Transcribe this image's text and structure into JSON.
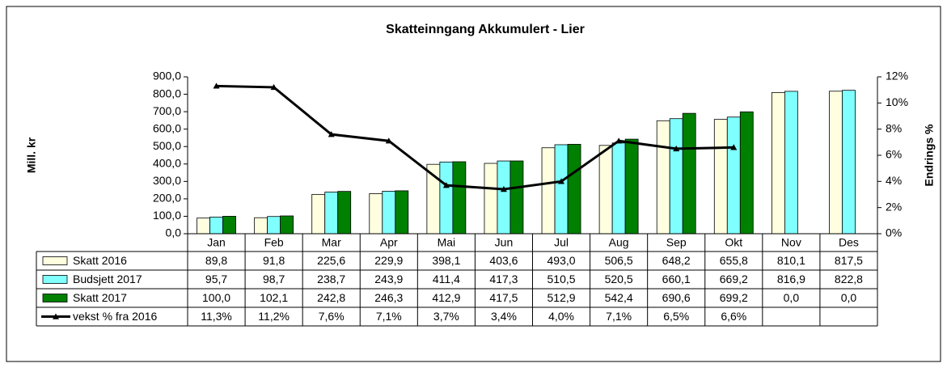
{
  "chart_data": {
    "type": "bar",
    "title": "Skatteinngang Akkumulert  - Lier",
    "ylabel": "Mill. kr",
    "y2label": "Endrings %",
    "categories": [
      "Jan",
      "Feb",
      "Mar",
      "Apr",
      "Mai",
      "Jun",
      "Jul",
      "Aug",
      "Sep",
      "Okt",
      "Nov",
      "Des"
    ],
    "series": [
      {
        "name": "Skatt 2016",
        "color": "#ffffe0",
        "values": [
          89.8,
          91.8,
          225.6,
          229.9,
          398.1,
          403.6,
          493.0,
          506.5,
          648.2,
          655.8,
          810.1,
          817.5
        ],
        "value_labels": [
          "89,8",
          "91,8",
          "225,6",
          "229,9",
          "398,1",
          "403,6",
          "493,0",
          "506,5",
          "648,2",
          "655,8",
          "810,1",
          "817,5"
        ]
      },
      {
        "name": "Budsjett 2017",
        "color": "#80ffff",
        "values": [
          95.7,
          98.7,
          238.7,
          243.9,
          411.4,
          417.3,
          510.5,
          520.5,
          660.1,
          669.2,
          816.9,
          822.8
        ],
        "value_labels": [
          "95,7",
          "98,7",
          "238,7",
          "243,9",
          "411,4",
          "417,3",
          "510,5",
          "520,5",
          "660,1",
          "669,2",
          "816,9",
          "822,8"
        ]
      },
      {
        "name": "Skatt 2017",
        "color": "#008000",
        "values": [
          100.0,
          102.1,
          242.8,
          246.3,
          412.9,
          417.5,
          512.9,
          542.4,
          690.6,
          699.2,
          0.0,
          0.0
        ],
        "value_labels": [
          "100,0",
          "102,1",
          "242,8",
          "246,3",
          "412,9",
          "417,5",
          "512,9",
          "542,4",
          "690,6",
          "699,2",
          "0,0",
          "0,0"
        ]
      },
      {
        "name": "vekst % fra 2016",
        "type": "line",
        "axis": "y2",
        "color": "#000000",
        "values": [
          11.3,
          11.2,
          7.6,
          7.1,
          3.7,
          3.4,
          4.0,
          7.1,
          6.5,
          6.6,
          null,
          null
        ],
        "value_labels": [
          "11,3%",
          "11,2%",
          "7,6%",
          "7,1%",
          "3,7%",
          "3,4%",
          "4,0%",
          "7,1%",
          "6,5%",
          "6,6%",
          null,
          null
        ]
      }
    ],
    "ylim": [
      0,
      900
    ],
    "yticks": [
      {
        "value": 0,
        "label": "0,0"
      },
      {
        "value": 100,
        "label": "100,0"
      },
      {
        "value": 200,
        "label": "200,0"
      },
      {
        "value": 300,
        "label": "300,0"
      },
      {
        "value": 400,
        "label": "400,0"
      },
      {
        "value": 500,
        "label": "500,0"
      },
      {
        "value": 600,
        "label": "600,0"
      },
      {
        "value": 700,
        "label": "700,0"
      },
      {
        "value": 800,
        "label": "800,0"
      },
      {
        "value": 900,
        "label": "900,0"
      }
    ],
    "y2lim": [
      0,
      12
    ],
    "y2ticks": [
      {
        "value": 0,
        "label": "0%"
      },
      {
        "value": 2,
        "label": "2%"
      },
      {
        "value": 4,
        "label": "4%"
      },
      {
        "value": 6,
        "label": "6%"
      },
      {
        "value": 8,
        "label": "8%"
      },
      {
        "value": 10,
        "label": "10%"
      },
      {
        "value": 12,
        "label": "12%"
      }
    ],
    "grid": false
  }
}
